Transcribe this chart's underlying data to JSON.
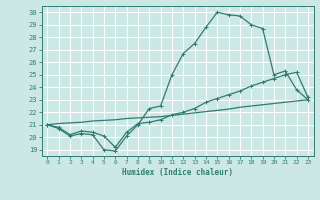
{
  "title": "",
  "xlabel": "Humidex (Indice chaleur)",
  "bg_color": "#cce8e4",
  "grid_color": "#ffffff",
  "line_color": "#2e7d72",
  "xlim": [
    -0.5,
    23.5
  ],
  "ylim": [
    18.5,
    30.5
  ],
  "xticks": [
    0,
    1,
    2,
    3,
    4,
    5,
    6,
    7,
    8,
    9,
    10,
    11,
    12,
    13,
    14,
    15,
    16,
    17,
    18,
    19,
    20,
    21,
    22,
    23
  ],
  "yticks": [
    19,
    20,
    21,
    22,
    23,
    24,
    25,
    26,
    27,
    28,
    29,
    30
  ],
  "line1_x": [
    0,
    1,
    2,
    3,
    4,
    5,
    6,
    7,
    8,
    9,
    10,
    11,
    12,
    13,
    14,
    15,
    16,
    17,
    18,
    19,
    20,
    21,
    22,
    23
  ],
  "line1_y": [
    21.0,
    20.7,
    20.1,
    20.3,
    20.2,
    19.0,
    18.9,
    20.1,
    21.0,
    22.3,
    22.5,
    25.0,
    26.7,
    27.5,
    28.8,
    30.0,
    29.8,
    29.7,
    29.0,
    28.7,
    25.0,
    25.3,
    23.8,
    23.0
  ],
  "line2_x": [
    0,
    1,
    2,
    3,
    4,
    5,
    6,
    7,
    8,
    9,
    10,
    11,
    12,
    13,
    14,
    15,
    16,
    17,
    18,
    19,
    20,
    21,
    22,
    23
  ],
  "line2_y": [
    21.0,
    20.8,
    20.2,
    20.5,
    20.4,
    20.1,
    19.2,
    20.4,
    21.1,
    21.2,
    21.4,
    21.8,
    22.0,
    22.3,
    22.8,
    23.1,
    23.4,
    23.7,
    24.1,
    24.4,
    24.7,
    25.0,
    25.2,
    23.2
  ],
  "line3_x": [
    0,
    1,
    2,
    3,
    4,
    5,
    6,
    7,
    8,
    9,
    10,
    11,
    12,
    13,
    14,
    15,
    16,
    17,
    18,
    19,
    20,
    21,
    22,
    23
  ],
  "line3_y": [
    21.0,
    21.1,
    21.15,
    21.2,
    21.3,
    21.35,
    21.4,
    21.5,
    21.55,
    21.6,
    21.65,
    21.75,
    21.85,
    21.95,
    22.05,
    22.15,
    22.25,
    22.4,
    22.5,
    22.6,
    22.7,
    22.8,
    22.9,
    23.0
  ]
}
